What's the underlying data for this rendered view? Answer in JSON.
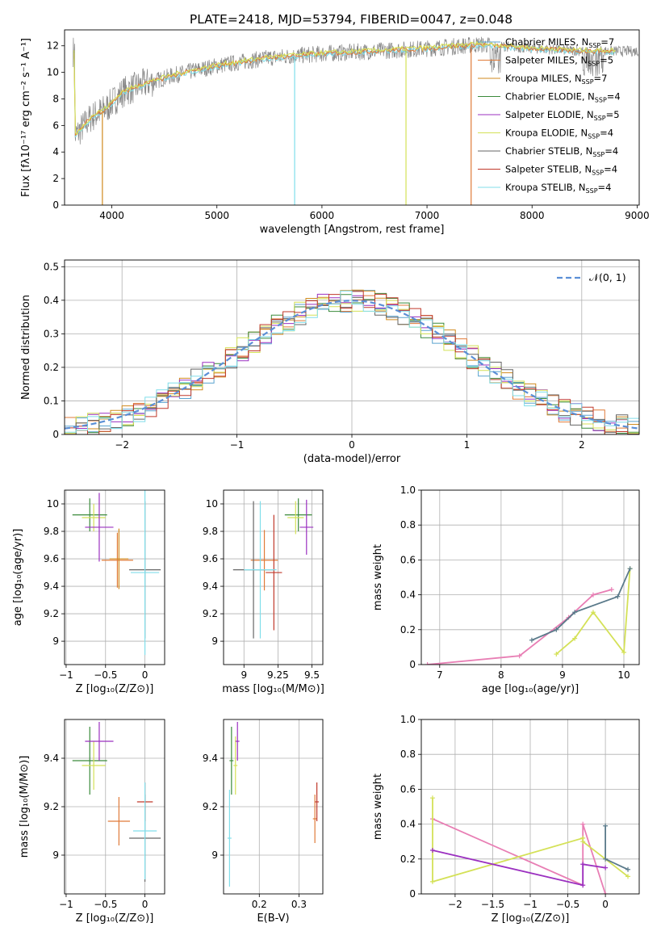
{
  "figure": {
    "title": "PLATE=2418, MJD=53794, FIBERID=0047, z=0.048"
  },
  "colors": {
    "series": [
      "#5ba3cf",
      "#e07b39",
      "#d08a1e",
      "#3a8a3a",
      "#9b30c0",
      "#d4e157",
      "#666666",
      "#c0392b",
      "#80deea"
    ],
    "data_gray": "#888888",
    "normal_curve": "#5b8fd6",
    "pink": "#e87eb4"
  },
  "panels": {
    "spectrum": {
      "xlabel": "wavelength [Angstrom, rest frame]",
      "ylabel": "Flux [fλ10⁻¹⁷ erg cm⁻² s⁻¹ A⁻¹]",
      "xlim": [
        3550,
        9020
      ],
      "ylim": [
        0,
        13.2
      ],
      "xticks": [
        4000,
        5000,
        6000,
        7000,
        8000,
        9000
      ],
      "yticks": [
        0,
        2,
        4,
        6,
        8,
        10,
        12
      ],
      "legend": [
        {
          "lib": "Chabrier MILES, N",
          "sub": "SSP",
          "val": "=7"
        },
        {
          "lib": "Salpeter MILES, N",
          "sub": "SSP",
          "val": "=5"
        },
        {
          "lib": "Kroupa MILES, N",
          "sub": "SSP",
          "val": "=7"
        },
        {
          "lib": "Chabrier ELODIE, N",
          "sub": "SSP",
          "val": "=4"
        },
        {
          "lib": "Salpeter ELODIE, N",
          "sub": "SSP",
          "val": "=5"
        },
        {
          "lib": "Kroupa ELODIE, N",
          "sub": "SSP",
          "val": "=4"
        },
        {
          "lib": "Chabrier STELIB, N",
          "sub": "SSP",
          "val": "=4"
        },
        {
          "lib": "Salpeter STELIB, N",
          "sub": "SSP",
          "val": "=4"
        },
        {
          "lib": "Kroupa STELIB, N",
          "sub": "SSP",
          "val": "=4"
        }
      ]
    },
    "residual": {
      "xlabel": "(data-model)/error",
      "ylabel": "Normed distribution",
      "legend": "𝒩(0, 1)",
      "xlim": [
        -2.5,
        2.5
      ],
      "ylim": [
        0,
        0.52
      ],
      "xticks": [
        -2,
        -1,
        0,
        1,
        2
      ],
      "yticks": [
        0.0,
        0.1,
        0.2,
        0.3,
        0.4,
        0.5
      ]
    },
    "z_age": {
      "xlabel": "Z [log₁₀(Z/Z⊙)]",
      "ylabel": "age  [log₁₀(age/yr)]",
      "xlim": [
        -1.02,
        0.25
      ],
      "ylim": [
        8.83,
        10.1
      ],
      "xticks": [
        -1.0,
        -0.5,
        0.0
      ],
      "yticks": [
        9.0,
        9.2,
        9.4,
        9.6,
        9.8,
        10.0
      ]
    },
    "mass_age": {
      "xlabel": "mass [log₁₀(M/M⊙)]",
      "ylabel": "",
      "xlim": [
        8.85,
        9.58
      ],
      "ylim": [
        8.83,
        10.1
      ],
      "xticks": [
        9.0,
        9.25,
        9.5
      ],
      "yticks": [
        9.0,
        9.2,
        9.4,
        9.6,
        9.8,
        10.0
      ]
    },
    "age_weight": {
      "xlabel": "age  [log₁₀(age/yr)]",
      "ylabel": "mass weight",
      "xlim": [
        6.7,
        10.25
      ],
      "ylim": [
        0,
        1.0
      ],
      "xticks": [
        7,
        8,
        9,
        10
      ],
      "yticks": [
        0.0,
        0.2,
        0.4,
        0.6,
        0.8,
        1.0
      ]
    },
    "z_mass": {
      "xlabel": "Z [log₁₀(Z/Z⊙)]",
      "ylabel": "mass [log₁₀(M/M⊙)]",
      "xlim": [
        -1.02,
        0.25
      ],
      "ylim": [
        8.84,
        9.56
      ],
      "xticks": [
        -1.0,
        -0.5,
        0.0
      ],
      "yticks": [
        9.0,
        9.2,
        9.4
      ]
    },
    "ebv_mass": {
      "xlabel": "E(B-V)",
      "ylabel": "",
      "xlim": [
        0.11,
        0.36
      ],
      "ylim": [
        8.84,
        9.56
      ],
      "xticks": [
        0.2,
        0.3
      ],
      "yticks": [
        9.0,
        9.2,
        9.4
      ]
    },
    "z_weight": {
      "xlabel": "Z [log₁₀(Z/Z⊙)]",
      "ylabel": "mass weight",
      "xlim": [
        -2.45,
        0.45
      ],
      "ylim": [
        0,
        1.0
      ],
      "xticks": [
        -2.0,
        -1.5,
        -1.0,
        -0.5,
        0.0
      ],
      "yticks": [
        0.0,
        0.2,
        0.4,
        0.6,
        0.8,
        1.0
      ]
    }
  },
  "chart_data": [
    {
      "type": "line",
      "title": "PLATE=2418, MJD=53794, FIBERID=0047, z=0.048",
      "xlabel": "wavelength [Angstrom, rest frame]",
      "ylabel": "Flux [fλ10⁻¹⁷ erg cm⁻² s⁻¹ A⁻¹]",
      "x": [
        3650,
        3800,
        3950,
        4100,
        4300,
        4600,
        5000,
        5500,
        6000,
        6500,
        7000,
        7500,
        8000,
        8500,
        9000
      ],
      "series": [
        {
          "name": "data",
          "values": [
            5.0,
            6.5,
            7.2,
            8.6,
            9.2,
            9.9,
            10.6,
            11.2,
            11.5,
            11.7,
            11.9,
            12.2,
            12.0,
            11.9,
            11.9
          ]
        },
        {
          "name": "model",
          "values": [
            5.2,
            6.6,
            7.3,
            8.5,
            9.1,
            9.8,
            10.5,
            11.1,
            11.4,
            11.6,
            11.8,
            12.1,
            11.8,
            11.6,
            11.6
          ]
        }
      ]
    },
    {
      "type": "line",
      "xlabel": "(data-model)/error",
      "ylabel": "Normed distribution",
      "x": [
        -2.4,
        -2.0,
        -1.6,
        -1.2,
        -0.8,
        -0.4,
        0.0,
        0.4,
        0.8,
        1.2,
        1.6,
        2.0,
        2.4
      ],
      "series": [
        {
          "name": "𝒩(0, 1)",
          "values": [
            0.022,
            0.054,
            0.111,
            0.194,
            0.29,
            0.368,
            0.399,
            0.368,
            0.29,
            0.194,
            0.111,
            0.054,
            0.022
          ]
        }
      ]
    },
    {
      "type": "scatter",
      "xlabel": "Z [log₁₀(Z/Z⊙)]",
      "ylabel": "age  [log₁₀(age/yr)]",
      "points": [
        {
          "x": -0.7,
          "y": 9.92,
          "xerr": 0.22,
          "yerr": 0.12,
          "color": 3
        },
        {
          "x": -0.65,
          "y": 9.9,
          "xerr": 0.15,
          "yerr": 0.1,
          "color": 5
        },
        {
          "x": -0.58,
          "y": 9.83,
          "xerr": 0.18,
          "yerr": 0.25,
          "color": 4
        },
        {
          "x": -0.35,
          "y": 9.59,
          "xerr": 0.2,
          "yerr": 0.2,
          "color": 1
        },
        {
          "x": -0.33,
          "y": 9.6,
          "xerr": 0.12,
          "yerr": 0.22,
          "color": 2
        },
        {
          "x": 0.0,
          "y": 9.52,
          "xerr": 0.2,
          "yerr": 0.5,
          "color": 6
        },
        {
          "x": 0.0,
          "y": 9.5,
          "xerr": 0.18,
          "yerr": 0.6,
          "color": 8
        }
      ]
    },
    {
      "type": "scatter",
      "xlabel": "mass [log₁₀(M/M⊙)]",
      "points": [
        {
          "x": 9.4,
          "y": 9.92,
          "xerr": 0.1,
          "yerr": 0.12,
          "color": 3
        },
        {
          "x": 9.38,
          "y": 9.9,
          "xerr": 0.06,
          "yerr": 0.12,
          "color": 5
        },
        {
          "x": 9.46,
          "y": 9.83,
          "xerr": 0.05,
          "yerr": 0.2,
          "color": 4
        },
        {
          "x": 9.15,
          "y": 9.59,
          "xerr": 0.1,
          "yerr": 0.22,
          "color": 1
        },
        {
          "x": 9.22,
          "y": 9.5,
          "xerr": 0.06,
          "yerr": 0.42,
          "color": 7
        },
        {
          "x": 9.07,
          "y": 9.52,
          "xerr": 0.15,
          "yerr": 0.5,
          "color": 6
        },
        {
          "x": 9.12,
          "y": 9.52,
          "xerr": 0.12,
          "yerr": 0.5,
          "color": 8
        }
      ]
    },
    {
      "type": "line",
      "xlabel": "age  [log₁₀(age/yr)]",
      "ylabel": "mass weight",
      "series": [
        {
          "name": "pink",
          "x": [
            6.8,
            8.3,
            9.1,
            9.5,
            9.8
          ],
          "values": [
            0.0,
            0.05,
            0.27,
            0.4,
            0.43
          ]
        },
        {
          "name": "lime",
          "x": [
            8.9,
            9.2,
            9.5,
            10.0,
            10.1
          ],
          "values": [
            0.06,
            0.15,
            0.3,
            0.07,
            0.55
          ]
        },
        {
          "name": "slate",
          "x": [
            8.5,
            8.9,
            9.2,
            9.9,
            10.1
          ],
          "values": [
            0.14,
            0.2,
            0.3,
            0.39,
            0.55
          ]
        }
      ]
    },
    {
      "type": "scatter",
      "xlabel": "Z [log₁₀(Z/Z⊙)]",
      "ylabel": "mass [log₁₀(M/M⊙)]",
      "points": [
        {
          "x": -0.7,
          "y": 9.39,
          "xerr": 0.22,
          "yerr": 0.14,
          "color": 3
        },
        {
          "x": -0.65,
          "y": 9.37,
          "xerr": 0.15,
          "yerr": 0.1,
          "color": 5
        },
        {
          "x": -0.58,
          "y": 9.47,
          "xerr": 0.18,
          "yerr": 0.08,
          "color": 4
        },
        {
          "x": -0.33,
          "y": 9.14,
          "xerr": 0.14,
          "yerr": 0.1,
          "color": 1
        },
        {
          "x": 0.0,
          "y": 9.22,
          "xerr": 0.1,
          "yerr": 0.08,
          "color": 7
        },
        {
          "x": 0.0,
          "y": 9.07,
          "xerr": 0.2,
          "yerr": 0.18,
          "color": 6
        },
        {
          "x": 0.0,
          "y": 9.1,
          "xerr": 0.15,
          "yerr": 0.2,
          "color": 8
        }
      ]
    },
    {
      "type": "scatter",
      "xlabel": "E(B-V)",
      "points": [
        {
          "x": 0.13,
          "y": 9.39,
          "xerr": 0.005,
          "yerr": 0.14,
          "color": 3
        },
        {
          "x": 0.14,
          "y": 9.37,
          "xerr": 0.005,
          "yerr": 0.12,
          "color": 5
        },
        {
          "x": 0.145,
          "y": 9.47,
          "xerr": 0.005,
          "yerr": 0.08,
          "color": 4
        },
        {
          "x": 0.125,
          "y": 9.07,
          "xerr": 0.005,
          "yerr": 0.2,
          "color": 8
        },
        {
          "x": 0.34,
          "y": 9.15,
          "xerr": 0.005,
          "yerr": 0.1,
          "color": 1
        },
        {
          "x": 0.345,
          "y": 9.22,
          "xerr": 0.005,
          "yerr": 0.08,
          "color": 7
        }
      ]
    },
    {
      "type": "line",
      "xlabel": "Z [log₁₀(Z/Z⊙)]",
      "ylabel": "mass weight",
      "series": [
        {
          "name": "pink",
          "x": [
            -2.3,
            -0.3,
            -0.3,
            0.0
          ],
          "values": [
            0.43,
            0.05,
            0.4,
            0.0
          ]
        },
        {
          "name": "lime",
          "x": [
            -2.3,
            -2.3,
            -0.3,
            -0.3,
            0.0,
            0.3
          ],
          "values": [
            0.55,
            0.07,
            0.32,
            0.3,
            0.2,
            0.1
          ]
        },
        {
          "name": "purple",
          "x": [
            -2.3,
            -0.3,
            -0.3,
            0.0
          ],
          "values": [
            0.25,
            0.05,
            0.17,
            0.15
          ]
        },
        {
          "name": "slate",
          "x": [
            0.0,
            0.0,
            0.3
          ],
          "values": [
            0.39,
            0.2,
            0.14
          ]
        }
      ]
    }
  ]
}
